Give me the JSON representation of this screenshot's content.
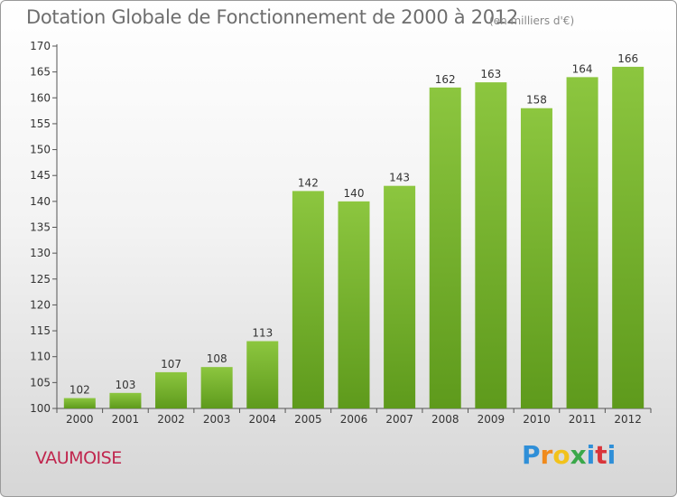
{
  "header": {
    "title": "Dotation Globale de Fonctionnement de 2000 à 2012",
    "subtitle": "(en milliers d'€)"
  },
  "footer": {
    "commune": "VAUMOISE",
    "logo_letters": [
      "P",
      "r",
      "o",
      "x",
      "i",
      "t",
      "i"
    ],
    "logo_colors": [
      "#2f8fd8",
      "#f08a1c",
      "#f2c21b",
      "#3aa84a",
      "#2f8fd8",
      "#d9353b",
      "#2f8fd8"
    ]
  },
  "chart_data": {
    "type": "bar",
    "title": "Dotation Globale de Fonctionnement de 2000 à 2012",
    "subtitle": "(en milliers d'€)",
    "xlabel": "",
    "ylabel": "",
    "categories": [
      "2000",
      "2001",
      "2002",
      "2003",
      "2004",
      "2005",
      "2006",
      "2007",
      "2008",
      "2009",
      "2010",
      "2011",
      "2012"
    ],
    "values": [
      102,
      103,
      107,
      108,
      113,
      142,
      140,
      143,
      162,
      163,
      158,
      164,
      166
    ],
    "ylim": [
      100,
      170
    ],
    "yticks": [
      100,
      105,
      110,
      115,
      120,
      125,
      130,
      135,
      140,
      145,
      150,
      155,
      160,
      165,
      170
    ],
    "grid": false,
    "bar_color": "#8cc63f",
    "bar_color_dark": "#5e9a1c"
  }
}
